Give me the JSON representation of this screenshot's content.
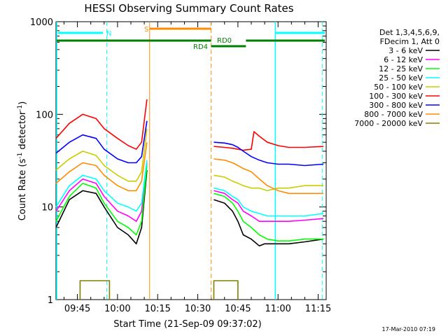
{
  "chart_data": {
    "type": "line",
    "title": "HESSI Observing Summary Count Rates",
    "xlabel": "Start Time (21-Sep-09 09:37:02)",
    "ylabel_main": "Count Rate (s",
    "ylabel_sup1": "-1",
    "ylabel_mid": " detector",
    "ylabel_sup2": "-1",
    "ylabel_end": ")",
    "y_scale": "log",
    "ylim": [
      1,
      1000
    ],
    "xlim_minutes": [
      577,
      678
    ],
    "x_ticks": [
      {
        "t": 585,
        "label": "09:45"
      },
      {
        "t": 600,
        "label": "10:00"
      },
      {
        "t": 615,
        "label": "10:15"
      },
      {
        "t": 630,
        "label": "10:30"
      },
      {
        "t": 645,
        "label": "10:45"
      },
      {
        "t": 660,
        "label": "11:00"
      },
      {
        "t": 675,
        "label": "11:15"
      }
    ],
    "y_ticks": [
      {
        "v": 1,
        "label": "1"
      },
      {
        "v": 10,
        "label": "10"
      },
      {
        "v": 100,
        "label": "100"
      },
      {
        "v": 1000,
        "label": "1000"
      }
    ],
    "legend": {
      "placement": "right",
      "header": [
        "Det 1,3,4,5,6,9,",
        "FDecim 1, Att 0"
      ]
    },
    "series": [
      {
        "name": "3 - 6 keV",
        "color": "#000000",
        "seg1": [
          [
            577,
            6
          ],
          [
            582,
            12
          ],
          [
            587,
            15
          ],
          [
            592,
            14
          ],
          [
            595,
            10
          ],
          [
            600,
            6
          ],
          [
            604,
            5
          ],
          [
            607,
            4
          ],
          [
            609,
            6
          ],
          [
            611,
            25
          ]
        ],
        "seg2": [
          [
            636,
            12
          ],
          [
            640,
            11
          ],
          [
            643,
            9
          ],
          [
            645,
            7
          ],
          [
            647,
            5
          ],
          [
            650,
            4.5
          ],
          [
            653,
            3.8
          ],
          [
            655,
            4
          ],
          [
            660,
            4
          ],
          [
            664,
            4
          ],
          [
            670,
            4.2
          ],
          [
            677,
            4.5
          ]
        ]
      },
      {
        "name": "6 - 12 keV",
        "color": "#ff00ff",
        "seg1": [
          [
            577,
            9
          ],
          [
            582,
            15
          ],
          [
            587,
            20
          ],
          [
            592,
            18
          ],
          [
            595,
            13
          ],
          [
            600,
            9
          ],
          [
            604,
            8
          ],
          [
            607,
            7
          ],
          [
            609,
            9
          ],
          [
            611,
            30
          ]
        ],
        "seg2": [
          [
            636,
            15
          ],
          [
            640,
            14
          ],
          [
            643,
            12
          ],
          [
            645,
            11
          ],
          [
            647,
            9
          ],
          [
            650,
            8
          ],
          [
            653,
            7
          ],
          [
            656,
            7
          ],
          [
            660,
            7
          ],
          [
            664,
            7
          ],
          [
            670,
            7.2
          ],
          [
            677,
            7.5
          ]
        ]
      },
      {
        "name": "12 - 25 keV",
        "color": "#00ff00",
        "seg1": [
          [
            577,
            7
          ],
          [
            582,
            13
          ],
          [
            587,
            18
          ],
          [
            592,
            16
          ],
          [
            595,
            11
          ],
          [
            600,
            7
          ],
          [
            604,
            6
          ],
          [
            607,
            5
          ],
          [
            609,
            7
          ],
          [
            611,
            28
          ]
        ],
        "seg2": [
          [
            636,
            14
          ],
          [
            640,
            13
          ],
          [
            643,
            11
          ],
          [
            645,
            9
          ],
          [
            647,
            7
          ],
          [
            650,
            6
          ],
          [
            653,
            5
          ],
          [
            656,
            4.5
          ],
          [
            660,
            4.3
          ],
          [
            664,
            4.3
          ],
          [
            670,
            4.5
          ],
          [
            677,
            4.5
          ]
        ]
      },
      {
        "name": "25 - 50 keV",
        "color": "#00ffff",
        "seg1": [
          [
            577,
            10
          ],
          [
            582,
            17
          ],
          [
            587,
            22
          ],
          [
            592,
            20
          ],
          [
            595,
            15
          ],
          [
            600,
            11
          ],
          [
            604,
            10
          ],
          [
            607,
            9
          ],
          [
            609,
            11
          ],
          [
            611,
            32
          ]
        ],
        "seg2": [
          [
            636,
            16
          ],
          [
            640,
            15
          ],
          [
            643,
            13
          ],
          [
            645,
            12
          ],
          [
            647,
            10
          ],
          [
            650,
            9
          ],
          [
            653,
            8.5
          ],
          [
            656,
            8
          ],
          [
            660,
            8
          ],
          [
            664,
            8
          ],
          [
            670,
            8
          ],
          [
            677,
            8.5
          ]
        ]
      },
      {
        "name": "50 - 100 keV",
        "color": "#cccc00",
        "seg1": [
          [
            577,
            25
          ],
          [
            582,
            33
          ],
          [
            587,
            40
          ],
          [
            592,
            36
          ],
          [
            595,
            28
          ],
          [
            600,
            22
          ],
          [
            604,
            19
          ],
          [
            607,
            19
          ],
          [
            609,
            24
          ],
          [
            611,
            70
          ]
        ],
        "seg2": [
          [
            636,
            22
          ],
          [
            640,
            21
          ],
          [
            643,
            19
          ],
          [
            645,
            18
          ],
          [
            647,
            17
          ],
          [
            650,
            16
          ],
          [
            653,
            16
          ],
          [
            656,
            15
          ],
          [
            660,
            16
          ],
          [
            664,
            16
          ],
          [
            670,
            17
          ],
          [
            677,
            17
          ]
        ]
      },
      {
        "name": "100 - 300 keV",
        "color": "#ff0000",
        "seg1": [
          [
            577,
            55
          ],
          [
            582,
            80
          ],
          [
            587,
            100
          ],
          [
            592,
            90
          ],
          [
            595,
            70
          ],
          [
            600,
            55
          ],
          [
            604,
            46
          ],
          [
            607,
            42
          ],
          [
            609,
            50
          ],
          [
            611,
            145
          ]
        ],
        "seg2": [
          [
            636,
            45
          ],
          [
            640,
            44
          ],
          [
            643,
            43
          ],
          [
            645,
            42
          ],
          [
            647,
            41
          ],
          [
            650,
            42
          ],
          [
            651,
            65
          ],
          [
            653,
            58
          ],
          [
            656,
            50
          ],
          [
            660,
            46
          ],
          [
            664,
            44
          ],
          [
            670,
            44
          ],
          [
            677,
            45
          ]
        ]
      },
      {
        "name": "300 - 800 keV",
        "color": "#0000ff",
        "seg1": [
          [
            577,
            38
          ],
          [
            582,
            50
          ],
          [
            587,
            60
          ],
          [
            592,
            55
          ],
          [
            595,
            42
          ],
          [
            600,
            33
          ],
          [
            604,
            30
          ],
          [
            607,
            30
          ],
          [
            609,
            35
          ],
          [
            611,
            85
          ]
        ],
        "seg2": [
          [
            636,
            50
          ],
          [
            640,
            49
          ],
          [
            643,
            47
          ],
          [
            645,
            44
          ],
          [
            647,
            40
          ],
          [
            650,
            35
          ],
          [
            653,
            32
          ],
          [
            656,
            30
          ],
          [
            660,
            29
          ],
          [
            664,
            29
          ],
          [
            670,
            28
          ],
          [
            677,
            29
          ]
        ]
      },
      {
        "name": "800 - 7000 keV",
        "color": "#ff8c00",
        "seg1": [
          [
            577,
            18
          ],
          [
            582,
            24
          ],
          [
            587,
            30
          ],
          [
            592,
            28
          ],
          [
            595,
            22
          ],
          [
            600,
            17
          ],
          [
            604,
            15
          ],
          [
            607,
            15
          ],
          [
            609,
            19
          ],
          [
            611,
            50
          ]
        ],
        "seg2": [
          [
            636,
            33
          ],
          [
            640,
            32
          ],
          [
            643,
            30
          ],
          [
            645,
            28
          ],
          [
            647,
            26
          ],
          [
            650,
            24
          ],
          [
            653,
            20
          ],
          [
            656,
            17
          ],
          [
            660,
            15
          ],
          [
            664,
            14
          ],
          [
            670,
            14
          ],
          [
            677,
            14
          ]
        ]
      },
      {
        "name": "7000 - 20000 keV",
        "color": "#808000",
        "seg1": [
          [
            586,
            1
          ],
          [
            586,
            1.6
          ],
          [
            597,
            1.6
          ],
          [
            597,
            1
          ]
        ],
        "seg2": [
          [
            636,
            1
          ],
          [
            636,
            1.6
          ],
          [
            645,
            1.6
          ],
          [
            645,
            1
          ]
        ]
      }
    ],
    "annotations": {
      "S_label": "S",
      "N_label": "N",
      "RD0_label": "RD0",
      "RD4_label": "RD4",
      "saa_color": "#00ffff",
      "flare_color": "#ff8c00",
      "night_color": "#008000"
    },
    "timestamp": "17-Mar-2010 07:19"
  }
}
